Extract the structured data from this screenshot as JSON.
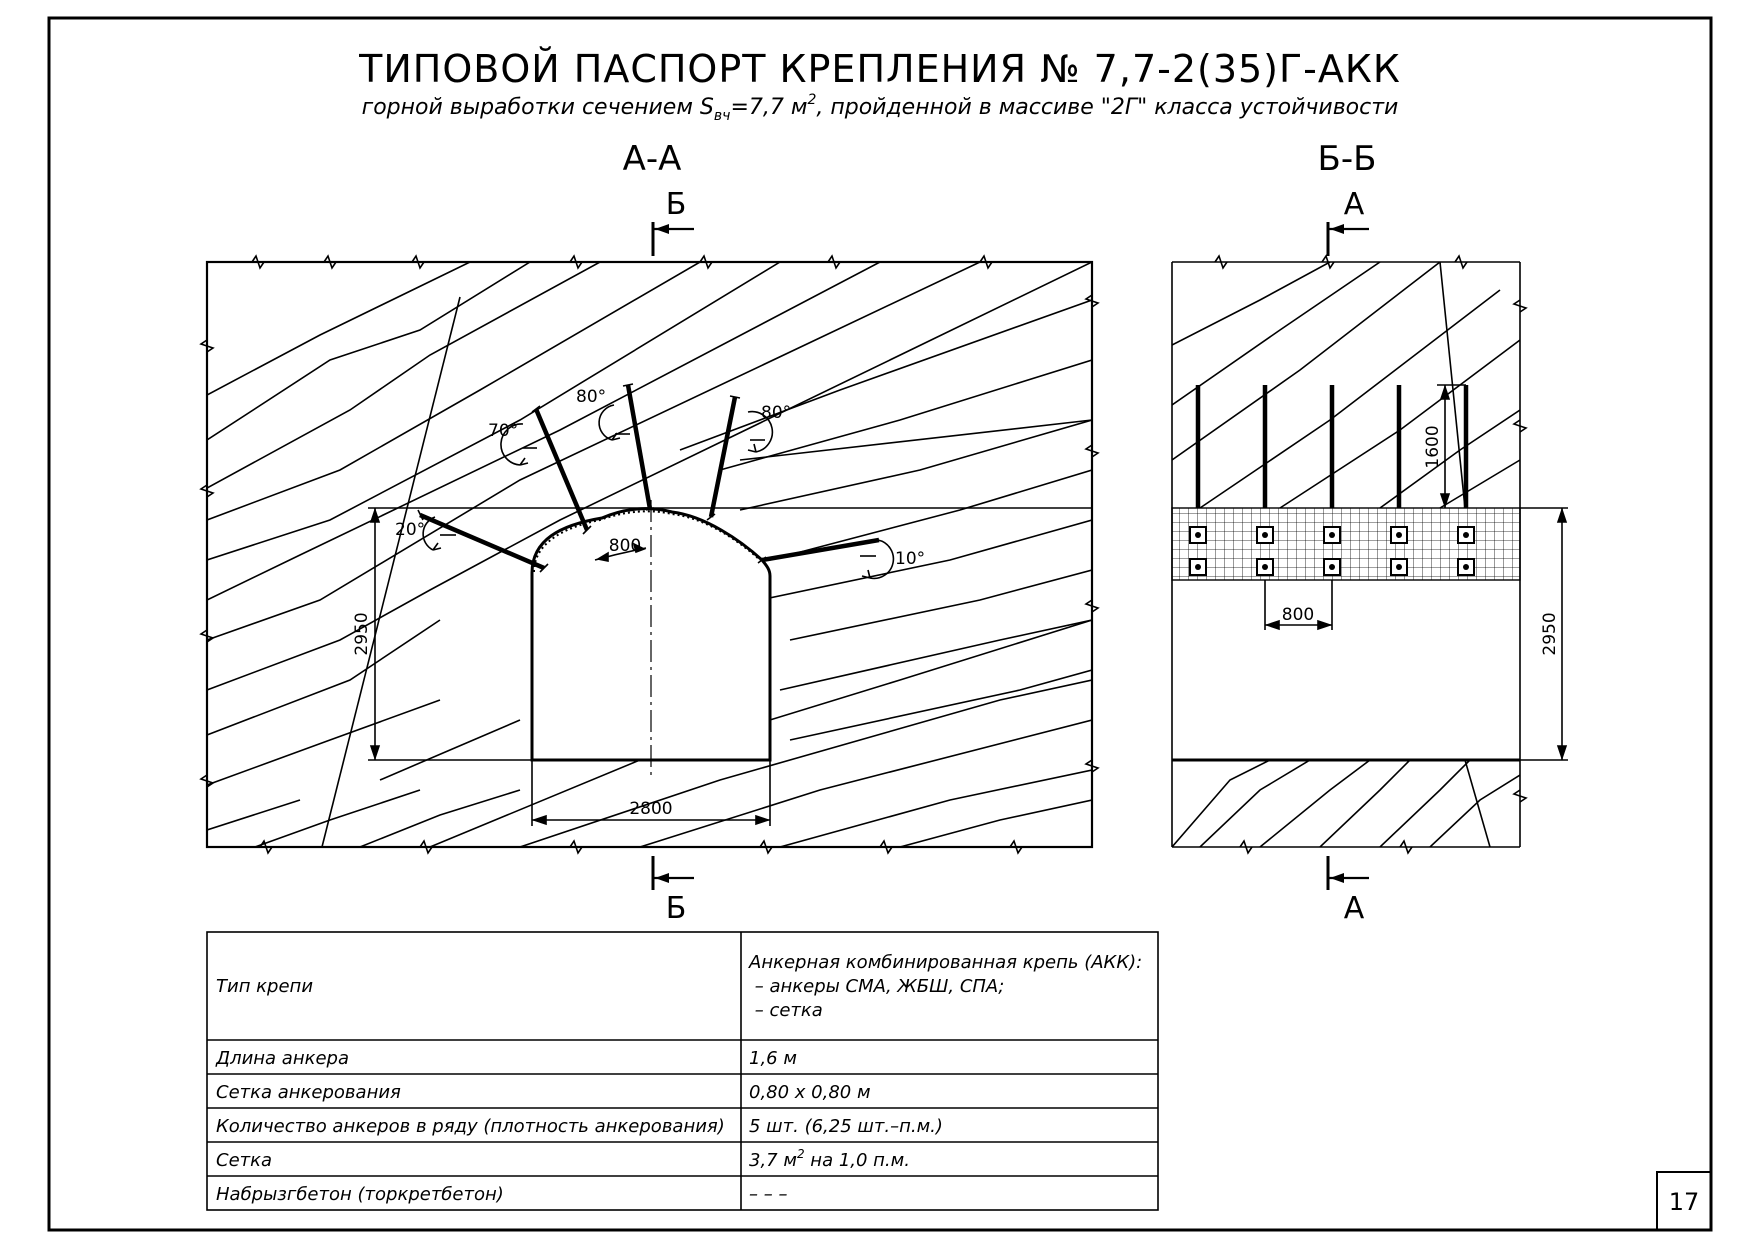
{
  "title": "ТИПОВОЙ ПАСПОРТ КРЕПЛЕНИЯ № 7,7-2(35)Г-АКК",
  "subtitle_before": "горной выработки сечением S",
  "subtitle_sub": "вч",
  "subtitle_mid": "=7,7 м",
  "subtitle_sup": "2",
  "subtitle_after": ", пройденной в массиве \"2Г\" класса устойчивости",
  "sections": {
    "aa": {
      "name": "А-А",
      "cut_mark": "Б",
      "dimensions": {
        "width": "2800",
        "height": "2950",
        "spacing": "800"
      },
      "angles": {
        "left_low": "20°",
        "left_mid": "70°",
        "crown": "80°",
        "right_mid": "80°",
        "right_low": "10°"
      }
    },
    "bb": {
      "name": "Б-Б",
      "cut_mark": "А",
      "dimensions": {
        "anchor_length": "1600",
        "spacing": "800",
        "height": "2950"
      }
    }
  },
  "table": {
    "rows": [
      {
        "label": "Тип крепи",
        "value_lines": [
          "Анкерная комбинированная крепь (АКК):",
          " – анкеры СМА, ЖБШ, СПА;",
          " – сетка"
        ]
      },
      {
        "label": "Длина анкера",
        "value_lines": [
          "1,6 м"
        ]
      },
      {
        "label": "Сетка анкерования",
        "value_lines": [
          "0,80 x 0,80 м"
        ]
      },
      {
        "label": "Количество анкеров в ряду (плотность анкерования)",
        "value_lines": [
          "5 шт. (6,25 шт.–п.м.)"
        ]
      },
      {
        "label": "Сетка",
        "value_before": "3,7 м",
        "value_sup": "2",
        "value_after": " на 1,0 п.м."
      },
      {
        "label": "Набрызгбетон (торкретбетон)",
        "value_lines": [
          "– – –"
        ]
      }
    ]
  },
  "page_number": "17"
}
